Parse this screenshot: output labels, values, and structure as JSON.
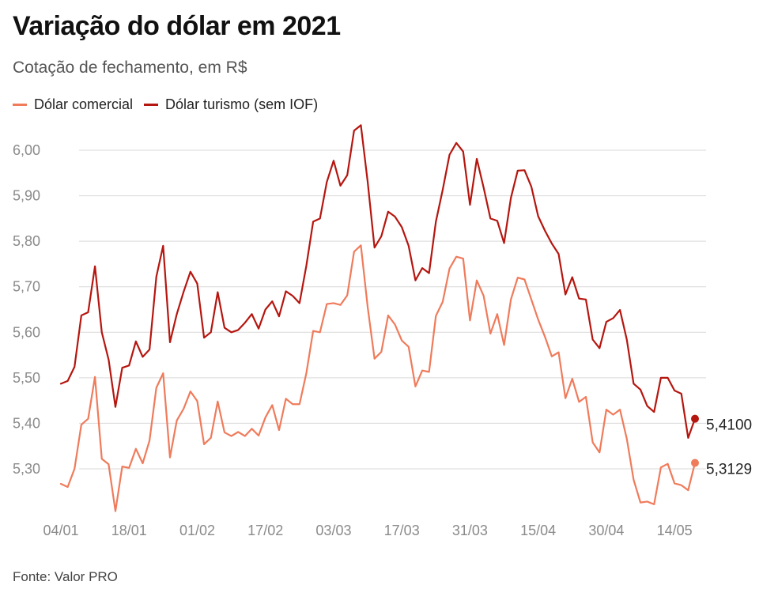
{
  "header": {
    "title": "Variação do dólar em 2021",
    "subtitle": "Cotação de fechamento, em R$"
  },
  "footer": {
    "source": "Fonte: Valor PRO"
  },
  "colors": {
    "comercial": "#ef7b5b",
    "turismo": "#b5160f",
    "grid": "#d9d9d9",
    "axis": "#8a8a8a"
  },
  "chart_data": {
    "type": "line",
    "title": "Variação do dólar em 2021",
    "subtitle": "Cotação de fechamento, em R$",
    "ylim": [
      5.2,
      6.07
    ],
    "yticks": [
      "5,30",
      "5,40",
      "5,50",
      "5,60",
      "5,70",
      "5,80",
      "5,90",
      "6,00"
    ],
    "ytick_values": [
      5.3,
      5.4,
      5.5,
      5.6,
      5.7,
      5.8,
      5.9,
      6.0
    ],
    "xticks": [
      {
        "label": "04/01",
        "index": 0
      },
      {
        "label": "18/01",
        "index": 10
      },
      {
        "label": "01/02",
        "index": 20
      },
      {
        "label": "17/02",
        "index": 30
      },
      {
        "label": "03/03",
        "index": 40
      },
      {
        "label": "17/03",
        "index": 50
      },
      {
        "label": "31/03",
        "index": 60
      },
      {
        "label": "15/04",
        "index": 70
      },
      {
        "label": "30/04",
        "index": 80
      },
      {
        "label": "14/05",
        "index": 90
      }
    ],
    "grid": true,
    "legend": "top-left",
    "series": [
      {
        "name": "Dólar comercial",
        "color": "#ef7b5b",
        "end_label": "5,3129",
        "values": [
          5.267,
          5.26,
          5.3,
          5.397,
          5.41,
          5.502,
          5.322,
          5.31,
          5.207,
          5.305,
          5.302,
          5.344,
          5.312,
          5.362,
          5.478,
          5.51,
          5.325,
          5.406,
          5.432,
          5.47,
          5.449,
          5.354,
          5.368,
          5.448,
          5.38,
          5.372,
          5.381,
          5.372,
          5.388,
          5.373,
          5.413,
          5.44,
          5.385,
          5.454,
          5.442,
          5.442,
          5.51,
          5.603,
          5.6,
          5.662,
          5.664,
          5.66,
          5.681,
          5.777,
          5.791,
          5.655,
          5.542,
          5.557,
          5.637,
          5.617,
          5.582,
          5.568,
          5.481,
          5.516,
          5.513,
          5.636,
          5.667,
          5.74,
          5.766,
          5.762,
          5.626,
          5.714,
          5.68,
          5.597,
          5.64,
          5.572,
          5.672,
          5.72,
          5.716,
          5.672,
          5.628,
          5.59,
          5.547,
          5.556,
          5.455,
          5.498,
          5.447,
          5.458,
          5.358,
          5.336,
          5.43,
          5.419,
          5.43,
          5.366,
          5.276,
          5.226,
          5.228,
          5.222,
          5.303,
          5.311,
          5.268,
          5.264,
          5.253,
          5.313
        ]
      },
      {
        "name": "Dólar turismo (sem IOF)",
        "color": "#b5160f",
        "end_label": "5,4100",
        "values": [
          5.487,
          5.493,
          5.524,
          5.637,
          5.644,
          5.745,
          5.6,
          5.54,
          5.436,
          5.522,
          5.527,
          5.58,
          5.546,
          5.562,
          5.722,
          5.79,
          5.578,
          5.64,
          5.689,
          5.733,
          5.707,
          5.588,
          5.6,
          5.688,
          5.61,
          5.6,
          5.605,
          5.621,
          5.64,
          5.608,
          5.65,
          5.668,
          5.635,
          5.69,
          5.68,
          5.664,
          5.746,
          5.843,
          5.85,
          5.93,
          5.977,
          5.922,
          5.945,
          6.043,
          6.055,
          5.93,
          5.786,
          5.811,
          5.865,
          5.854,
          5.831,
          5.79,
          5.714,
          5.741,
          5.73,
          5.843,
          5.913,
          5.99,
          6.016,
          5.997,
          5.88,
          5.981,
          5.918,
          5.85,
          5.845,
          5.796,
          5.895,
          5.955,
          5.956,
          5.92,
          5.855,
          5.823,
          5.795,
          5.772,
          5.683,
          5.721,
          5.674,
          5.672,
          5.584,
          5.565,
          5.623,
          5.631,
          5.649,
          5.584,
          5.487,
          5.474,
          5.438,
          5.425,
          5.5,
          5.5,
          5.472,
          5.465,
          5.368,
          5.41
        ]
      }
    ]
  }
}
